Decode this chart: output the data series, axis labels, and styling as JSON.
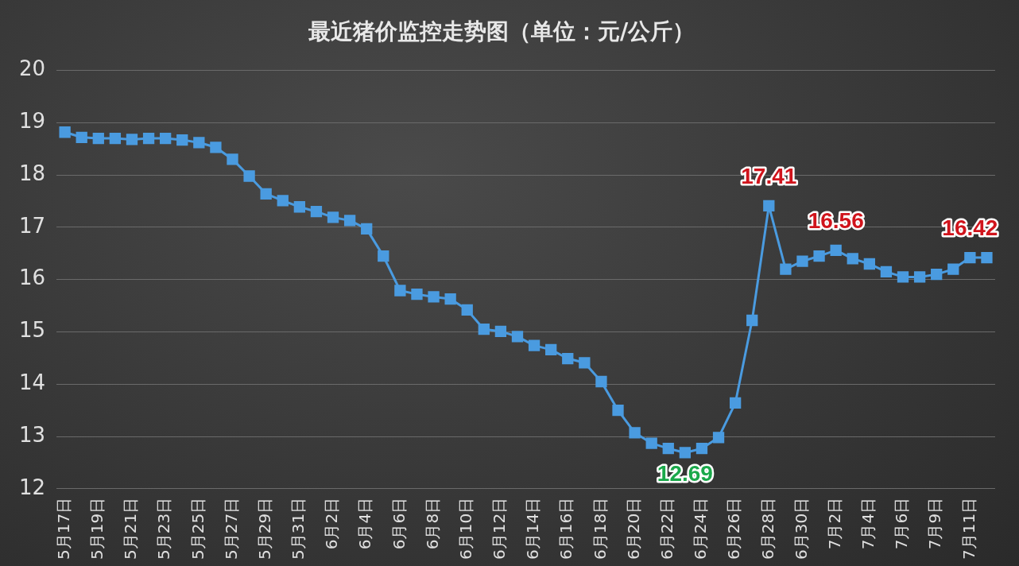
{
  "chart_data": {
    "type": "line",
    "title": "最近猪价监控走势图（单位：元/公斤）",
    "categories": [
      "5月17日",
      null,
      "5月19日",
      null,
      "5月21日",
      null,
      "5月23日",
      null,
      "5月25日",
      null,
      "5月27日",
      null,
      "5月29日",
      null,
      "5月31日",
      null,
      "6月2日",
      null,
      "6月4日",
      null,
      "6月6日",
      null,
      "6月8日",
      null,
      "6月10日",
      null,
      "6月12日",
      null,
      "6月14日",
      null,
      "6月16日",
      null,
      "6月18日",
      null,
      "6月20日",
      null,
      "6月22日",
      null,
      "6月24日",
      null,
      "6月26日",
      null,
      "6月28日",
      null,
      "6月30日",
      null,
      "7月2日",
      null,
      "7月4日",
      null,
      "7月6日",
      null,
      "7月9日",
      null,
      "7月11日",
      null
    ],
    "series": [
      {
        "color": "#4a9be0",
        "values": [
          18.82,
          18.72,
          18.7,
          18.7,
          18.68,
          18.7,
          18.7,
          18.67,
          18.62,
          18.53,
          18.3,
          17.98,
          17.64,
          17.51,
          17.39,
          17.3,
          17.19,
          17.13,
          16.97,
          16.45,
          15.79,
          15.72,
          15.67,
          15.63,
          15.42,
          15.05,
          15.01,
          14.91,
          14.74,
          14.66,
          14.49,
          14.41,
          14.05,
          13.5,
          13.07,
          12.87,
          12.77,
          12.69,
          12.77,
          12.98,
          13.64,
          15.22,
          17.41,
          16.2,
          16.35,
          16.45,
          16.56,
          16.4,
          16.3,
          16.15,
          16.05,
          16.05,
          16.1,
          16.2,
          16.42,
          16.42
        ],
        "value_labels": [
          null,
          null,
          null,
          null,
          null,
          null,
          null,
          null,
          null,
          null,
          null,
          null,
          null,
          null,
          null,
          null,
          null,
          null,
          null,
          null,
          null,
          null,
          null,
          null,
          null,
          null,
          null,
          null,
          null,
          null,
          null,
          null,
          null,
          null,
          null,
          null,
          null,
          "12.69",
          null,
          null,
          null,
          null,
          "17.41",
          null,
          null,
          null,
          "16.56",
          null,
          null,
          null,
          null,
          null,
          null,
          null,
          "16.42",
          null
        ]
      }
    ],
    "ylim": [
      12,
      20
    ],
    "yticks": [
      12,
      13,
      14,
      15,
      16,
      17,
      18,
      19,
      20
    ],
    "grid": "y",
    "legend": false,
    "marker": "square",
    "line_style": "solid"
  }
}
